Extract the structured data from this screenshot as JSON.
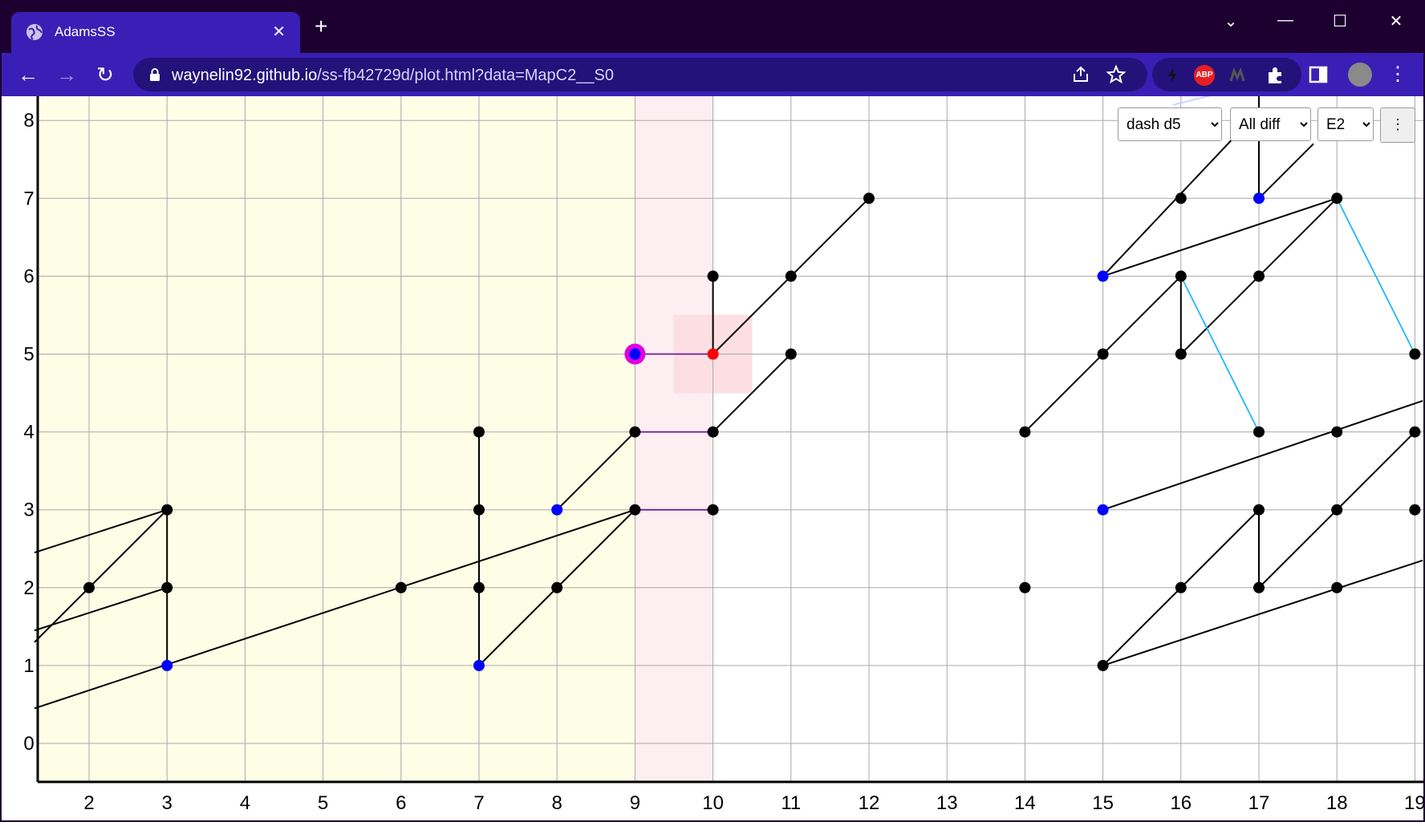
{
  "window": {
    "tab_title": "AdamsSS",
    "tab_close": "✕",
    "new_tab": "+",
    "min": "—",
    "max": "☐",
    "close": "✕",
    "dropdown": "⌄"
  },
  "toolbar": {
    "back": "←",
    "forward": "→",
    "reload": "↻",
    "url_host": "waynelin92.github.io",
    "url_path": "/ss-fb42729d/plot.html?data=MapC2__S0",
    "abp": "ABP",
    "menu": "⋮"
  },
  "controls": {
    "select1": {
      "value": "dash d5",
      "options": [
        "dash d5"
      ]
    },
    "select2": {
      "value": "All diff",
      "options": [
        "All diff"
      ]
    },
    "select3": {
      "value": "E2",
      "options": [
        "E2"
      ]
    },
    "more": "⋮"
  },
  "colors": {
    "bg_yellow": "#fefee6",
    "bg_pink": "#fdeef2",
    "highlight": "#fddfe3",
    "blue": "#0000ff",
    "red": "#ff0000",
    "magenta": "#e100e1",
    "cyan": "#1eb9f5",
    "purple": "#6a1b9a",
    "grid": "#a8a8a8"
  },
  "chart_data": {
    "type": "scatter",
    "x_ticks": [
      2,
      3,
      4,
      5,
      6,
      7,
      8,
      9,
      10,
      11,
      12,
      13,
      14,
      15,
      16,
      17,
      18,
      19
    ],
    "y_ticks": [
      0,
      1,
      2,
      3,
      4,
      5,
      6,
      7,
      8
    ],
    "xlim": [
      1.35,
      19.15
    ],
    "ylim": [
      -0.5,
      8.5
    ],
    "regions": [
      {
        "x0": 1.35,
        "x1": 9,
        "color": "yellow"
      },
      {
        "x0": 9,
        "x1": 10,
        "color": "pink"
      }
    ],
    "highlight_box": {
      "x": 10,
      "y": 5
    },
    "points": [
      {
        "x": 2,
        "y": 2,
        "c": "black"
      },
      {
        "x": 3,
        "y": 3,
        "c": "black"
      },
      {
        "x": 3,
        "y": 2,
        "c": "black"
      },
      {
        "x": 3,
        "y": 1,
        "c": "blue"
      },
      {
        "x": 6,
        "y": 2,
        "c": "black"
      },
      {
        "x": 7,
        "y": 4,
        "c": "black"
      },
      {
        "x": 7,
        "y": 3,
        "c": "black"
      },
      {
        "x": 7,
        "y": 2,
        "c": "black"
      },
      {
        "x": 7,
        "y": 1,
        "c": "blue"
      },
      {
        "x": 8,
        "y": 3,
        "c": "blue"
      },
      {
        "x": 8,
        "y": 2,
        "c": "black"
      },
      {
        "x": 9,
        "y": 4,
        "c": "black"
      },
      {
        "x": 9,
        "y": 3,
        "c": "black"
      },
      {
        "x": 9,
        "y": 5,
        "c": "blue",
        "selected": true
      },
      {
        "x": 10,
        "y": 6,
        "c": "black"
      },
      {
        "x": 10,
        "y": 5,
        "c": "red"
      },
      {
        "x": 10,
        "y": 4,
        "c": "black"
      },
      {
        "x": 10,
        "y": 3,
        "c": "black"
      },
      {
        "x": 11,
        "y": 6,
        "c": "black"
      },
      {
        "x": 11,
        "y": 5,
        "c": "black"
      },
      {
        "x": 12,
        "y": 7,
        "c": "black"
      },
      {
        "x": 14,
        "y": 4,
        "c": "black"
      },
      {
        "x": 14,
        "y": 2,
        "c": "black"
      },
      {
        "x": 15,
        "y": 6,
        "c": "blue"
      },
      {
        "x": 15,
        "y": 5,
        "c": "black"
      },
      {
        "x": 15,
        "y": 3,
        "c": "blue"
      },
      {
        "x": 15,
        "y": 1,
        "c": "black"
      },
      {
        "x": 16,
        "y": 7,
        "c": "black"
      },
      {
        "x": 16,
        "y": 6,
        "c": "black"
      },
      {
        "x": 16,
        "y": 5,
        "c": "black"
      },
      {
        "x": 16,
        "y": 2,
        "c": "black"
      },
      {
        "x": 17,
        "y": 7,
        "c": "blue"
      },
      {
        "x": 17,
        "y": 6,
        "c": "black"
      },
      {
        "x": 17,
        "y": 4,
        "c": "black"
      },
      {
        "x": 17,
        "y": 3,
        "c": "black"
      },
      {
        "x": 17,
        "y": 2,
        "c": "black"
      },
      {
        "x": 18,
        "y": 7,
        "c": "black"
      },
      {
        "x": 18,
        "y": 4,
        "c": "black"
      },
      {
        "x": 18,
        "y": 3,
        "c": "black"
      },
      {
        "x": 18,
        "y": 2,
        "c": "black"
      },
      {
        "x": 19,
        "y": 5,
        "c": "black"
      },
      {
        "x": 19,
        "y": 4,
        "c": "black"
      },
      {
        "x": 19,
        "y": 3,
        "c": "black"
      }
    ],
    "edges": [
      {
        "a": [
          1.3,
          2.45
        ],
        "b": [
          3,
          3
        ],
        "c": "black"
      },
      {
        "a": [
          1.3,
          1.3
        ],
        "b": [
          3,
          3
        ],
        "c": "black"
      },
      {
        "a": [
          1.3,
          1.45
        ],
        "b": [
          3,
          2
        ],
        "c": "black"
      },
      {
        "a": [
          3,
          3
        ],
        "b": [
          3,
          1
        ],
        "c": "black"
      },
      {
        "a": [
          1.3,
          0.45
        ],
        "b": [
          9,
          3
        ],
        "c": "black"
      },
      {
        "a": [
          7,
          4
        ],
        "b": [
          7,
          1
        ],
        "c": "black"
      },
      {
        "a": [
          7,
          1
        ],
        "b": [
          9,
          3
        ],
        "c": "black"
      },
      {
        "a": [
          8,
          3
        ],
        "b": [
          9,
          4
        ],
        "c": "black"
      },
      {
        "a": [
          9,
          4
        ],
        "b": [
          10,
          4
        ],
        "c": "purple"
      },
      {
        "a": [
          9,
          3
        ],
        "b": [
          10,
          3
        ],
        "c": "purple"
      },
      {
        "a": [
          9,
          5
        ],
        "b": [
          10,
          5
        ],
        "c": "purple"
      },
      {
        "a": [
          10,
          6
        ],
        "b": [
          10,
          5
        ],
        "c": "black"
      },
      {
        "a": [
          10,
          5
        ],
        "b": [
          12,
          7
        ],
        "c": "black"
      },
      {
        "a": [
          10,
          4
        ],
        "b": [
          11,
          5
        ],
        "c": "black"
      },
      {
        "a": [
          14,
          4
        ],
        "b": [
          16,
          6
        ],
        "c": "black"
      },
      {
        "a": [
          16,
          6
        ],
        "b": [
          16,
          5
        ],
        "c": "black"
      },
      {
        "a": [
          15,
          6
        ],
        "b": [
          16.98,
          8.1
        ],
        "c": "black"
      },
      {
        "a": [
          15,
          6
        ],
        "b": [
          18,
          7
        ],
        "c": "black"
      },
      {
        "a": [
          17,
          8.4
        ],
        "b": [
          17,
          7
        ],
        "c": "black"
      },
      {
        "a": [
          17,
          7
        ],
        "b": [
          17.7,
          7.7
        ],
        "c": "black"
      },
      {
        "a": [
          16,
          5
        ],
        "b": [
          18,
          7
        ],
        "c": "black"
      },
      {
        "a": [
          16,
          6
        ],
        "b": [
          17,
          4
        ],
        "c": "cyan"
      },
      {
        "a": [
          18,
          7
        ],
        "b": [
          19,
          5
        ],
        "c": "cyan"
      },
      {
        "a": [
          15,
          3
        ],
        "b": [
          19.1,
          4.4
        ],
        "c": "black"
      },
      {
        "a": [
          15,
          1
        ],
        "b": [
          17,
          3
        ],
        "c": "black"
      },
      {
        "a": [
          17,
          3
        ],
        "b": [
          17,
          2
        ],
        "c": "black"
      },
      {
        "a": [
          17,
          2
        ],
        "b": [
          19,
          4
        ],
        "c": "black"
      },
      {
        "a": [
          15,
          1
        ],
        "b": [
          19.1,
          2.35
        ],
        "c": "black"
      },
      {
        "a": [
          15.9,
          8.2
        ],
        "b": [
          16.9,
          8.45
        ],
        "c": "lightblue"
      }
    ]
  }
}
